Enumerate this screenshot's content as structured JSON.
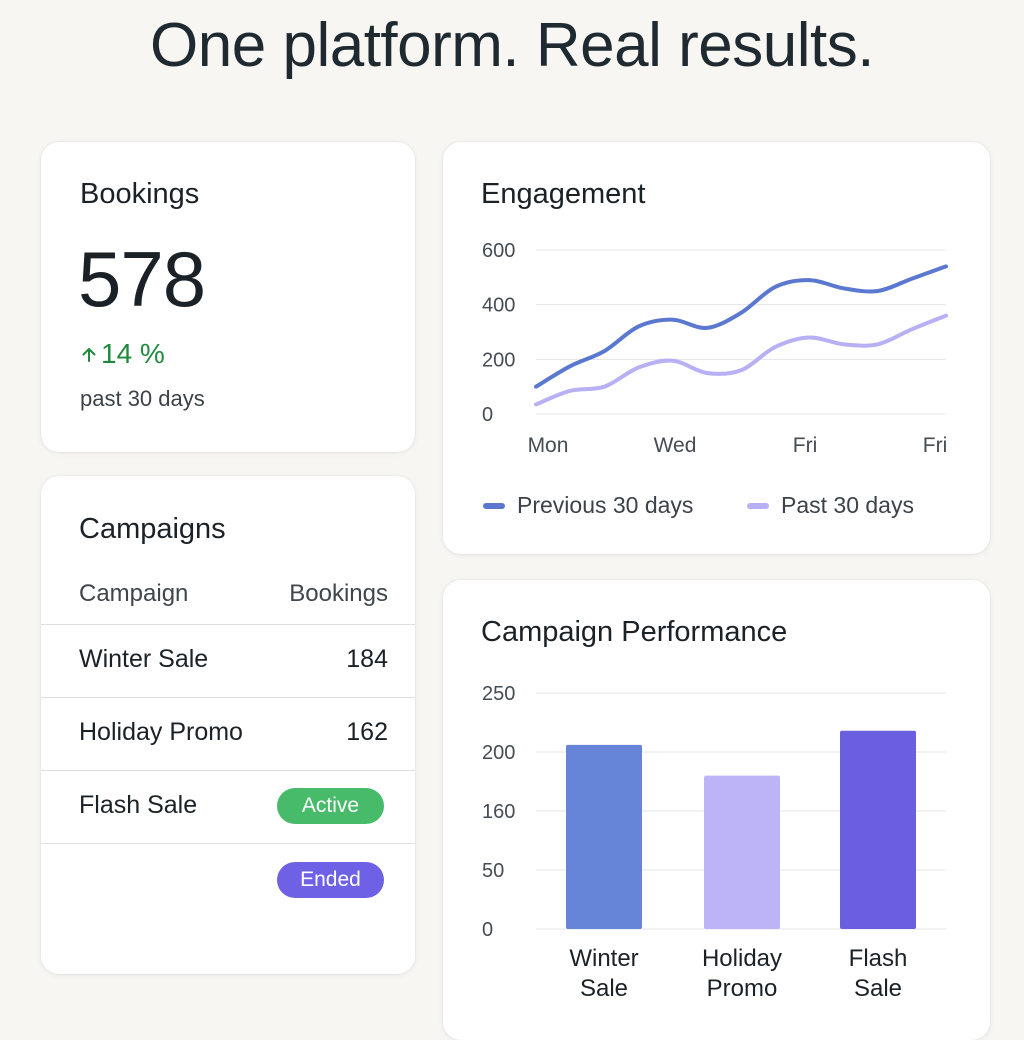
{
  "headline": "One platform. Real results.",
  "bookings": {
    "title": "Bookings",
    "value": "578",
    "change": "14 %",
    "change_icon": "arrow-up-icon",
    "period": "past 30 days",
    "positive_color": "#1f8a3e"
  },
  "campaigns": {
    "title": "Campaigns",
    "columns": [
      "Campaign",
      "Bookings"
    ],
    "rows": [
      {
        "name": "Winter Sale",
        "bookings": "184"
      },
      {
        "name": "Holiday Promo",
        "bookings": "162"
      },
      {
        "name": "Flash Sale",
        "status": "Active"
      },
      {
        "name": "",
        "status": "Ended"
      }
    ],
    "status_colors": {
      "Active": "#48bb6a",
      "Ended": "#6e61e6"
    }
  },
  "engagement": {
    "title": "Engagement",
    "chart_data": {
      "type": "line",
      "title": "Engagement",
      "x_tick_labels": [
        "Mon",
        "Wed",
        "Fri",
        "Fri"
      ],
      "x": [
        0,
        0.5,
        1,
        1.5,
        2,
        2.5,
        3,
        3.5,
        4,
        4.5,
        5,
        5.5,
        6
      ],
      "y_ticks": [
        0,
        200,
        400,
        600
      ],
      "ylim": [
        0,
        600
      ],
      "grid": true,
      "legend_position": "bottom",
      "series": [
        {
          "name": "Previous 30 days",
          "color": "#5b78d0",
          "values": [
            100,
            175,
            230,
            320,
            345,
            315,
            370,
            465,
            490,
            460,
            450,
            495,
            540
          ]
        },
        {
          "name": "Past 30 days",
          "color": "#b7b0f4",
          "values": [
            35,
            85,
            100,
            170,
            195,
            150,
            160,
            245,
            280,
            255,
            255,
            310,
            360
          ]
        }
      ]
    }
  },
  "performance": {
    "title": "Campaign Performance",
    "chart_data": {
      "type": "bar",
      "title": "Campaign Performance",
      "categories": [
        [
          "Winter",
          "Sale"
        ],
        [
          "Holiday",
          "Promo"
        ],
        [
          "Flash",
          "Sale"
        ]
      ],
      "y_tick_labels": [
        "250",
        "200",
        "160",
        "50",
        "0"
      ],
      "bar_values_as_fraction_of_axis": [
        0.78,
        0.65,
        0.84
      ],
      "bar_colors": [
        "#6785d8",
        "#bcb4f7",
        "#6a5fe0"
      ],
      "grid": true
    }
  }
}
